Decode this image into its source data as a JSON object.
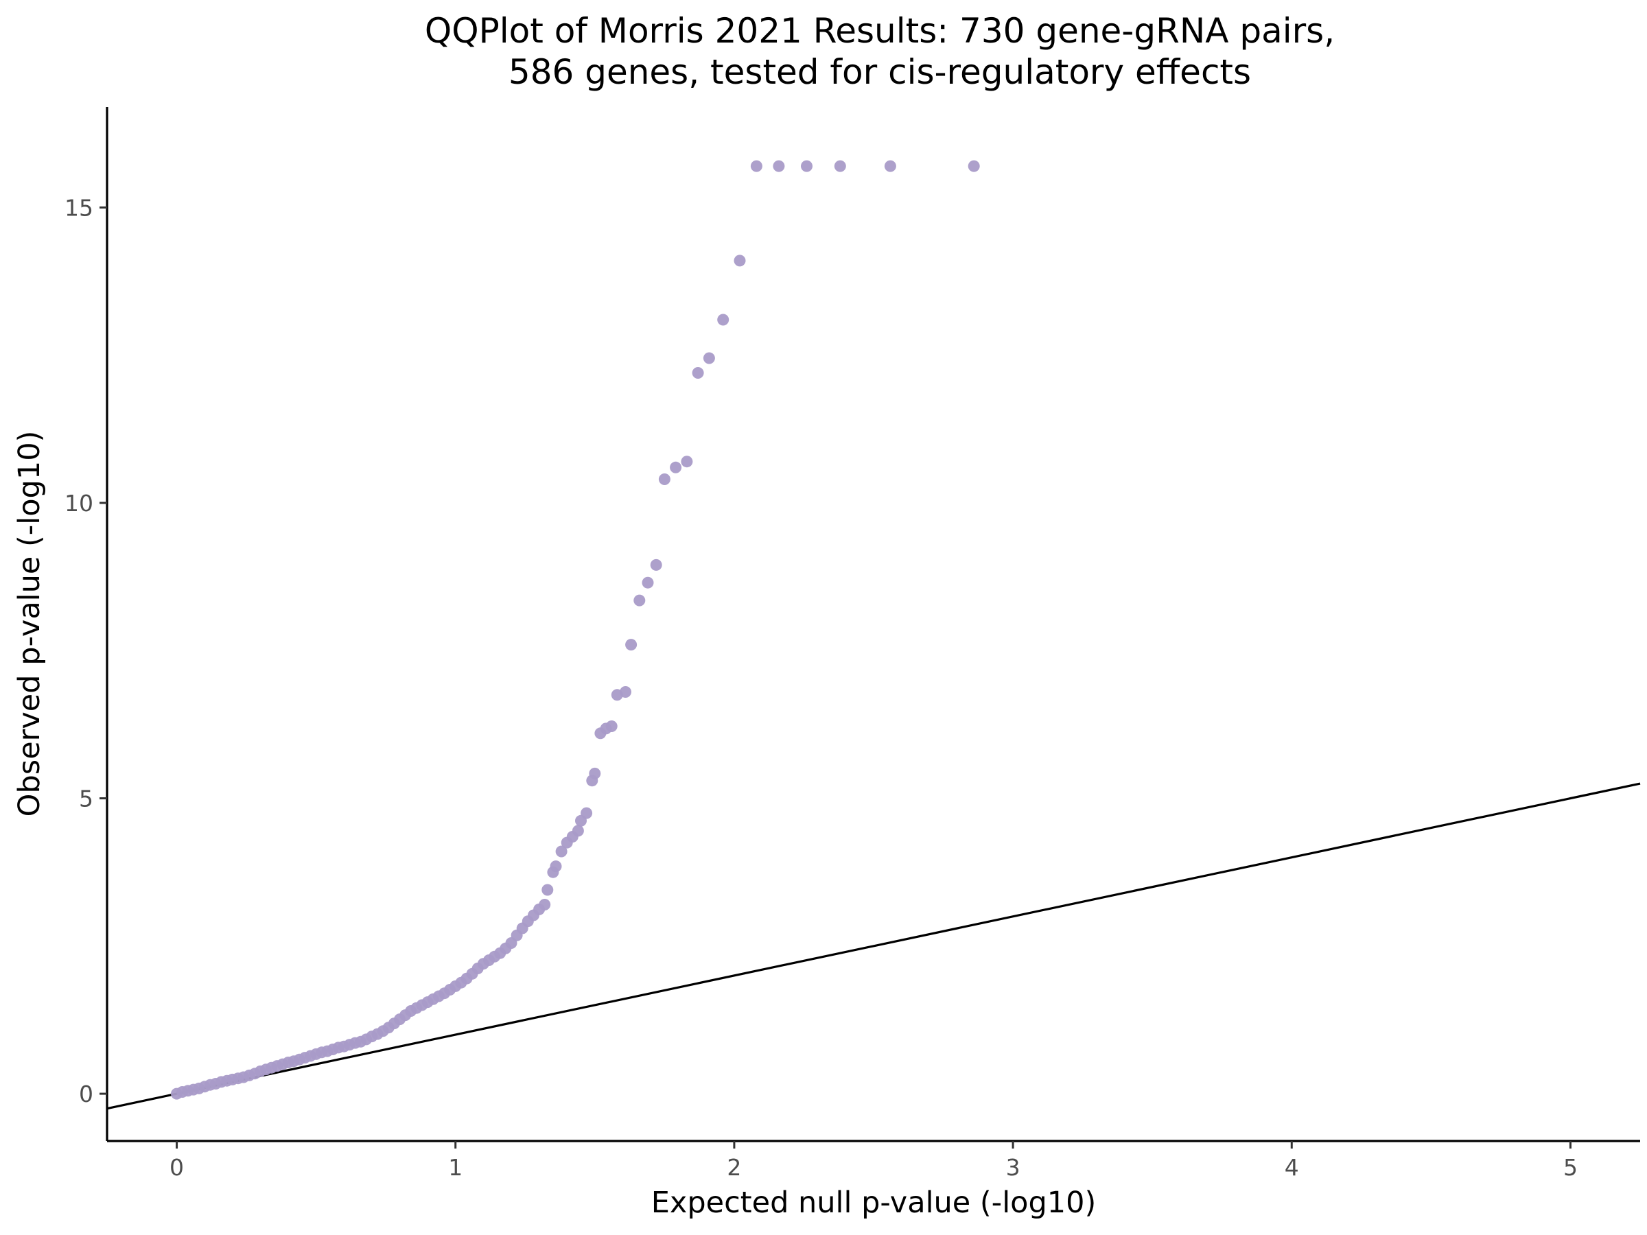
{
  "chart_data": {
    "type": "scatter",
    "title": "QQPlot of Morris 2021 Results: 730 gene-gRNA pairs,",
    "subtitle": "586 genes, tested for cis-regulatory effects",
    "xlabel": "Expected null p-value (-log10)",
    "ylabel": "Observed p-value (-log10)",
    "xlim": [
      -0.25,
      5.25
    ],
    "ylim": [
      -0.8,
      16.7
    ],
    "x_ticks": [
      "0",
      "1",
      "2",
      "3",
      "4",
      "5"
    ],
    "y_ticks": [
      "0",
      "5",
      "10",
      "15"
    ],
    "grid": false,
    "legend": "none",
    "point_color": "#A99BC8",
    "reference_line": {
      "slope": 1,
      "intercept": 0,
      "color": "#000000"
    },
    "series": [
      {
        "x": [
          0.0,
          0.02,
          0.04,
          0.06,
          0.08,
          0.1,
          0.12,
          0.14,
          0.16,
          0.18,
          0.2,
          0.22,
          0.24,
          0.26,
          0.28,
          0.3,
          0.32,
          0.34,
          0.36,
          0.38,
          0.4,
          0.42,
          0.44,
          0.46,
          0.48,
          0.5,
          0.52,
          0.54,
          0.56,
          0.58,
          0.6,
          0.62,
          0.64,
          0.66,
          0.68,
          0.7,
          0.72,
          0.74,
          0.76,
          0.78,
          0.8,
          0.82,
          0.84,
          0.86,
          0.88,
          0.9,
          0.92,
          0.94,
          0.96,
          0.98,
          1.0,
          1.02,
          1.04,
          1.06,
          1.08,
          1.1,
          1.12,
          1.14,
          1.16,
          1.18,
          1.2,
          1.22,
          1.24,
          1.26,
          1.28,
          1.3,
          1.32,
          1.33,
          1.35,
          1.36,
          1.38,
          1.4,
          1.42,
          1.44,
          1.45,
          1.47,
          1.49,
          1.5,
          1.52,
          1.54,
          1.56,
          1.58,
          1.61,
          1.63,
          1.66,
          1.69,
          1.72,
          1.75,
          1.79,
          1.83,
          1.87,
          1.91,
          1.96,
          2.02,
          2.08,
          2.16,
          2.26,
          2.38,
          2.56,
          2.86
        ],
        "y": [
          0.0,
          0.03,
          0.05,
          0.07,
          0.09,
          0.12,
          0.15,
          0.17,
          0.2,
          0.22,
          0.24,
          0.26,
          0.28,
          0.31,
          0.34,
          0.38,
          0.41,
          0.44,
          0.47,
          0.5,
          0.53,
          0.55,
          0.58,
          0.61,
          0.64,
          0.67,
          0.7,
          0.72,
          0.75,
          0.78,
          0.8,
          0.83,
          0.86,
          0.88,
          0.92,
          0.97,
          1.01,
          1.06,
          1.12,
          1.19,
          1.26,
          1.33,
          1.4,
          1.45,
          1.5,
          1.55,
          1.6,
          1.65,
          1.7,
          1.76,
          1.82,
          1.88,
          1.95,
          2.03,
          2.12,
          2.2,
          2.26,
          2.32,
          2.38,
          2.46,
          2.55,
          2.68,
          2.8,
          2.92,
          3.02,
          3.12,
          3.2,
          3.45,
          3.75,
          3.85,
          4.1,
          4.25,
          4.35,
          4.45,
          4.62,
          4.75,
          5.3,
          5.42,
          6.1,
          6.18,
          6.22,
          6.75,
          6.8,
          7.6,
          8.35,
          8.65,
          8.95,
          10.4,
          10.6,
          10.7,
          12.2,
          12.45,
          13.1,
          14.1,
          15.7,
          15.7,
          15.7,
          15.7,
          15.7,
          15.7
        ]
      }
    ]
  }
}
